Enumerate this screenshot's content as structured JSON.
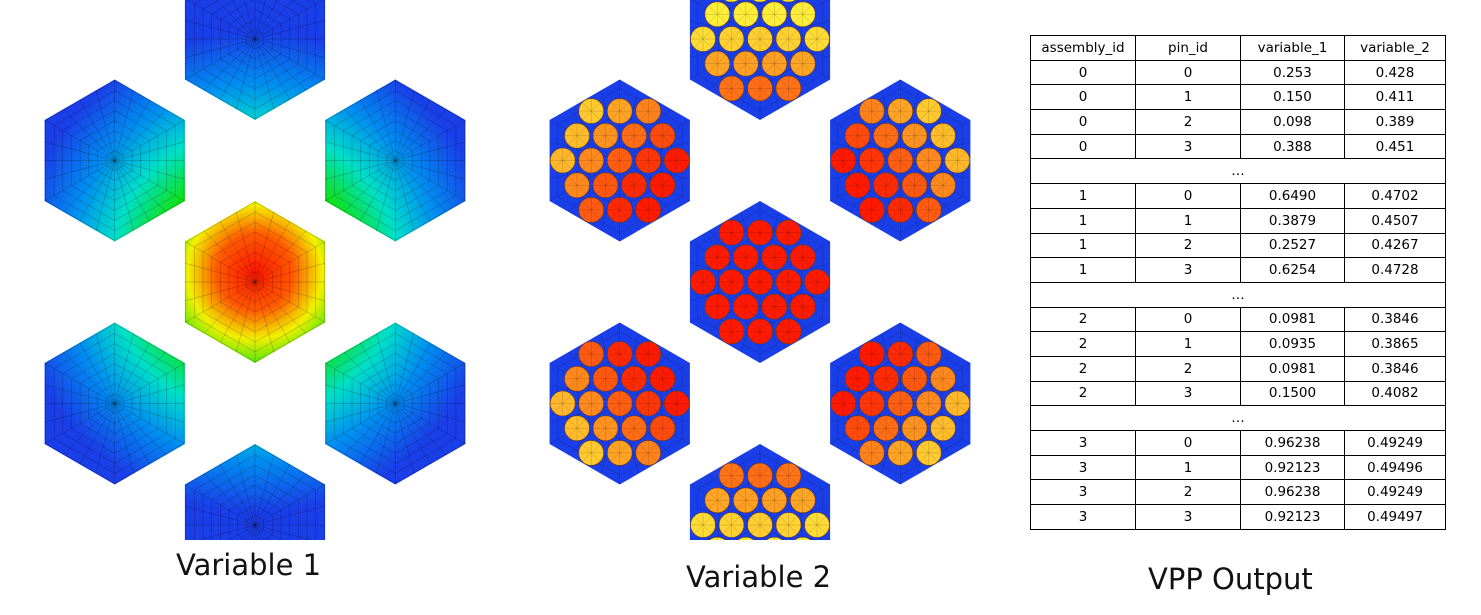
{
  "captions": {
    "variable_1": "Variable 1",
    "variable_2": "Variable 2",
    "vpp_output": "VPP Output"
  },
  "colors": {
    "mesh_background": "#1a3ee8",
    "mesh_lines": "#000000",
    "colormap": [
      "#1a3ee8",
      "#00d8ff",
      "#00e000",
      "#f0f000",
      "#ff0000"
    ],
    "pin_ramp_low": "#ff1a00",
    "pin_ramp_high": "#ffef3a"
  },
  "diagram": {
    "assemblies": [
      {
        "name": "top"
      },
      {
        "name": "upper-left"
      },
      {
        "name": "upper-right"
      },
      {
        "name": "center"
      },
      {
        "name": "lower-left"
      },
      {
        "name": "lower-right"
      },
      {
        "name": "bottom"
      }
    ]
  },
  "table": {
    "headers": [
      "assembly_id",
      "pin_id",
      "variable_1",
      "variable_2"
    ],
    "ellipsis": "…",
    "groups": [
      {
        "rows": [
          [
            "0",
            "0",
            "0.253",
            "0.428"
          ],
          [
            "0",
            "1",
            "0.150",
            "0.411"
          ],
          [
            "0",
            "2",
            "0.098",
            "0.389"
          ],
          [
            "0",
            "3",
            "0.388",
            "0.451"
          ]
        ]
      },
      {
        "rows": [
          [
            "1",
            "0",
            "0.6490",
            "0.4702"
          ],
          [
            "1",
            "1",
            "0.3879",
            "0.4507"
          ],
          [
            "1",
            "2",
            "0.2527",
            "0.4267"
          ],
          [
            "1",
            "3",
            "0.6254",
            "0.4728"
          ]
        ]
      },
      {
        "rows": [
          [
            "2",
            "0",
            "0.0981",
            "0.3846"
          ],
          [
            "2",
            "1",
            "0.0935",
            "0.3865"
          ],
          [
            "2",
            "2",
            "0.0981",
            "0.3846"
          ],
          [
            "2",
            "3",
            "0.1500",
            "0.4082"
          ]
        ]
      },
      {
        "rows": [
          [
            "3",
            "0",
            "0.96238",
            "0.49249"
          ],
          [
            "3",
            "1",
            "0.92123",
            "0.49496"
          ],
          [
            "3",
            "2",
            "0.96238",
            "0.49249"
          ],
          [
            "3",
            "3",
            "0.92123",
            "0.49497"
          ]
        ]
      }
    ]
  }
}
